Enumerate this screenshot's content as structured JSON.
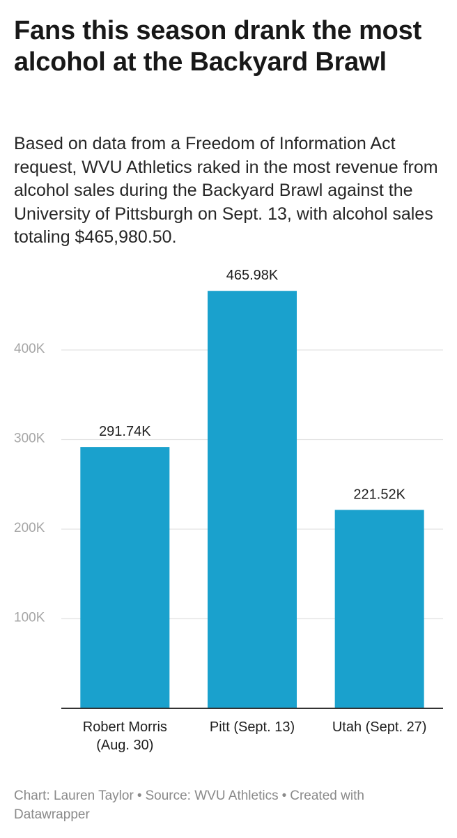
{
  "header": {
    "title": "Fans this season drank the most alcohol at the Backyard Brawl",
    "subtitle": "Based on data from a Freedom of Information Act request, WVU Athletics raked in the most revenue from alcohol sales during the Backyard Brawl against the University of Pittsburgh on Sept. 13, with alcohol sales totaling $465,980.50."
  },
  "chart_data": {
    "type": "bar",
    "title": "Fans this season drank the most alcohol at the Backyard Brawl",
    "xlabel": "",
    "ylabel": "",
    "categories": [
      [
        "Robert Morris",
        "(Aug. 30)"
      ],
      [
        "Pitt (Sept. 13)"
      ],
      [
        "Utah (Sept. 27)"
      ]
    ],
    "values": [
      291740,
      465980,
      221520
    ],
    "value_labels": [
      "291.74K",
      "465.98K",
      "221.52K"
    ],
    "ylim": [
      0,
      465980
    ],
    "yticks": [
      100000,
      200000,
      300000,
      400000
    ],
    "ytick_labels": [
      "100K",
      "200K",
      "300K",
      "400K"
    ],
    "grid": true,
    "bar_color": "#1aa1cd",
    "grid_color": "#e3e3e3",
    "axis_color": "#333333",
    "tick_label_color": "#a6a6a6"
  },
  "footer": {
    "chart_credit": "Chart: Lauren Taylor",
    "separator": "•",
    "source": "Source: WVU Athletics",
    "created_with": "Created with Datawrapper"
  }
}
